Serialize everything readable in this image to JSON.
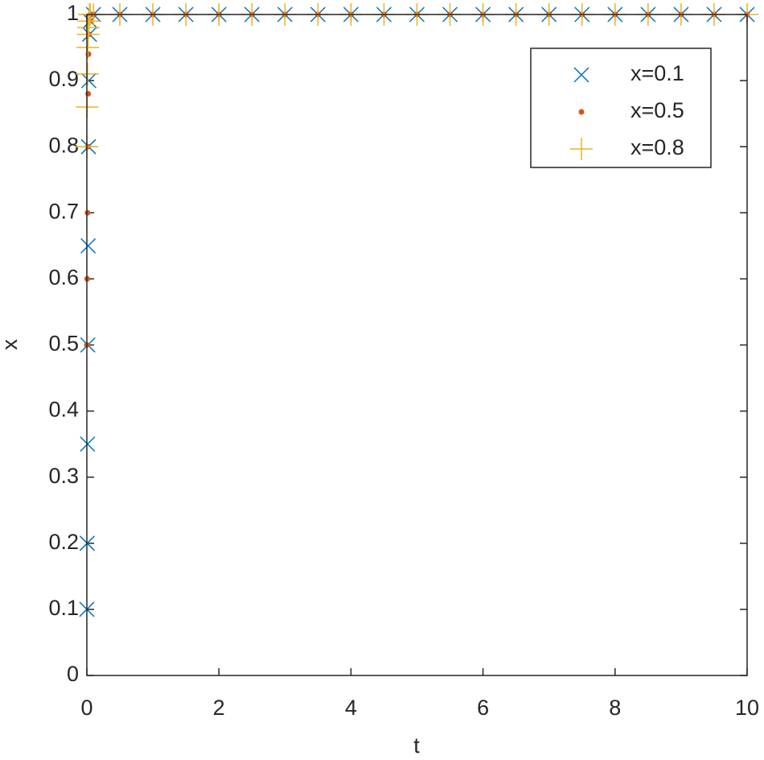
{
  "chart_data": {
    "type": "scatter",
    "xlabel": "t",
    "ylabel": "x",
    "x": [
      0,
      0.005,
      0.01,
      0.015,
      0.02,
      0.025,
      0.03,
      0.04,
      0.05,
      0.1,
      0.5,
      1,
      1.5,
      2,
      2.5,
      3,
      3.5,
      4,
      4.5,
      5,
      5.5,
      6,
      6.5,
      7,
      7.5,
      8,
      8.5,
      9,
      9.5,
      10
    ],
    "series": [
      {
        "name": "x=0.1",
        "color": "#0072bd",
        "marker": "x",
        "values": [
          0.1,
          0.2,
          0.35,
          0.5,
          0.65,
          0.8,
          0.9,
          0.97,
          0.99,
          1,
          1,
          1,
          1,
          1,
          1,
          1,
          1,
          1,
          1,
          1,
          1,
          1,
          1,
          1,
          1,
          1,
          1,
          1,
          1,
          1
        ]
      },
      {
        "name": "x=0.5",
        "color": "#d95319",
        "marker": "dot",
        "values": [
          0.5,
          0.6,
          0.7,
          0.8,
          0.88,
          0.94,
          0.97,
          0.99,
          1,
          1,
          1,
          1,
          1,
          1,
          1,
          1,
          1,
          1,
          1,
          1,
          1,
          1,
          1,
          1,
          1,
          1,
          1,
          1,
          1,
          1
        ]
      },
      {
        "name": "x=0.8",
        "color": "#edb120",
        "marker": "plus",
        "values": [
          0.8,
          0.86,
          0.91,
          0.95,
          0.97,
          0.98,
          0.99,
          1,
          1,
          1,
          1,
          1,
          1,
          1,
          1,
          1,
          1,
          1,
          1,
          1,
          1,
          1,
          1,
          1,
          1,
          1,
          1,
          1,
          1,
          1
        ]
      }
    ],
    "xlim": [
      0,
      10
    ],
    "xticks": [
      0,
      2,
      4,
      6,
      8,
      10
    ],
    "ylim": [
      0,
      1
    ],
    "yticks": [
      0,
      0.1,
      0.2,
      0.3,
      0.4,
      0.5,
      0.6,
      0.7,
      0.8,
      0.9,
      1
    ],
    "legend": "upper right",
    "grid": false
  }
}
